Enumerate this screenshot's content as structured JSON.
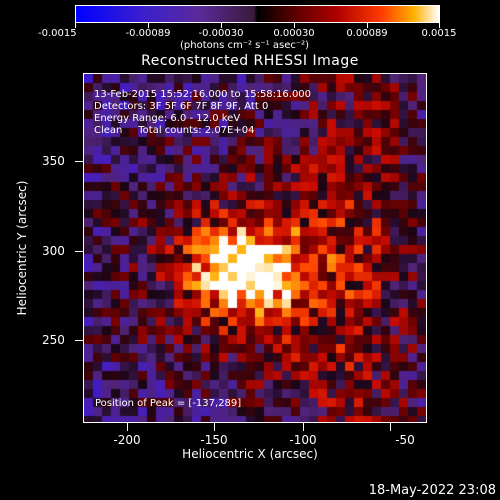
{
  "colorbar": {
    "ticks": [
      "-0.0015",
      "-0.00089",
      "-0.00030",
      "0.00030",
      "0.00089",
      "0.0015"
    ],
    "units": "(photons cm⁻² s⁻¹ asec⁻²)"
  },
  "title": "Reconstructed RHESSI Image",
  "info": {
    "time": "13-Feb-2015 15:52:16.000 to 15:58:16.000",
    "detectors": "Detectors: 3F 5F 6F 7F 8F 9F, Att 0",
    "energy": "Energy Range: 6.0 - 12.0 keV",
    "clean": "Clean     Total counts: 2.07E+04",
    "peak": "Position of Peak = [-137,289]"
  },
  "axes": {
    "xlabel": "Heliocentric X (arcsec)",
    "ylabel": "Heliocentric Y (arcsec)",
    "xticks": [
      "-200",
      "-150",
      "-100",
      "-50"
    ],
    "yticks": [
      "350",
      "300",
      "250"
    ]
  },
  "chart_data": {
    "type": "heatmap",
    "title": "Reconstructed RHESSI Image",
    "xlabel": "Heliocentric X (arcsec)",
    "ylabel": "Heliocentric Y (arcsec)",
    "xlim": [
      -228,
      -36
    ],
    "ylim": [
      205,
      398
    ],
    "zlim": [
      -0.0015,
      0.0015
    ],
    "peak": [
      -137,
      289
    ],
    "colors": [
      "#0000ff",
      "#5a2a9a",
      "#000000",
      "#b00000",
      "#ff3a00",
      "#ffb000",
      "#ffffff"
    ]
  },
  "timestamp": "18-May-2022 23:08"
}
